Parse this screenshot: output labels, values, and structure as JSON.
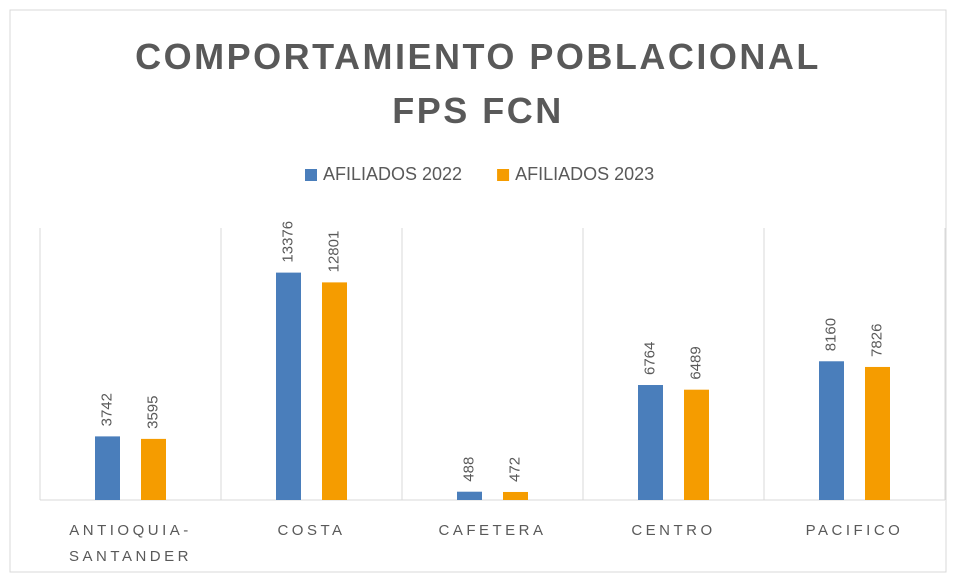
{
  "chart_data": {
    "type": "bar",
    "title": "COMPORTAMIENTO POBLACIONAL FPS FCN",
    "categories": [
      "ANTIOQUIA-SANTANDER",
      "COSTA",
      "CAFETERA",
      "CENTRO",
      "PACIFICO"
    ],
    "series": [
      {
        "name": "AFILIADOS 2022",
        "color": "#4a7ebb",
        "values": [
          3742,
          13376,
          488,
          6764,
          8160
        ]
      },
      {
        "name": "AFILIADOS 2023",
        "color": "#f59c00",
        "values": [
          3595,
          12801,
          472,
          6489,
          7826
        ]
      }
    ],
    "ylim": [
      0,
      16000
    ],
    "legend": "top"
  }
}
